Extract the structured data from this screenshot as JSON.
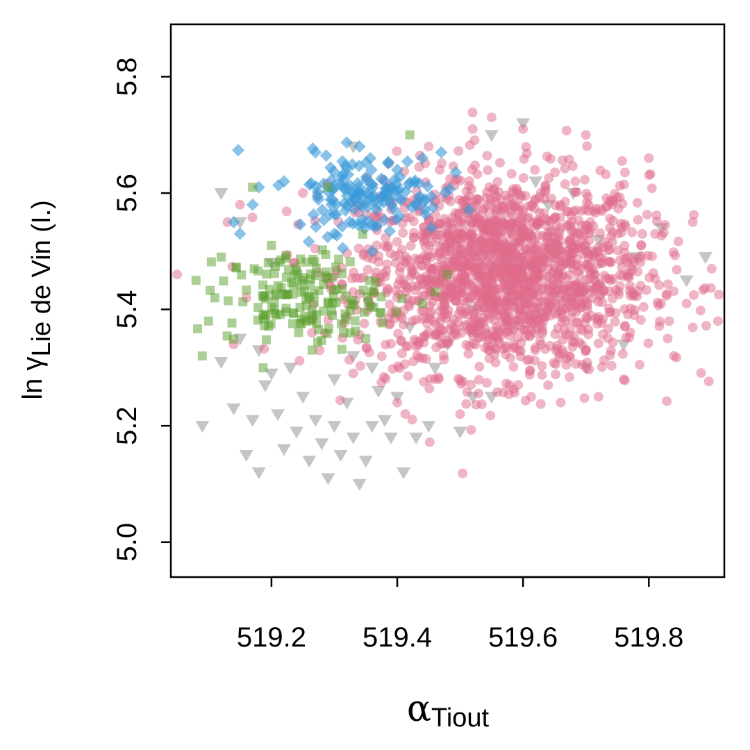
{
  "chart_data": {
    "type": "scatter",
    "title": "",
    "xlabel": "α",
    "xlabel_sub": "Tiout",
    "ylabel_prefix": "ln γ",
    "ylabel_sub": "Lie de Vin (I.)",
    "xlim": [
      519.04,
      519.92
    ],
    "ylim": [
      4.94,
      5.89
    ],
    "x_ticks": [
      519.2,
      519.4,
      519.6,
      519.8
    ],
    "x_tick_labels": [
      "519.2",
      "519.4",
      "519.6",
      "519.8"
    ],
    "y_ticks": [
      5.0,
      5.2,
      5.4,
      5.6,
      5.8
    ],
    "y_tick_labels": [
      "5.0",
      "5.2",
      "5.4",
      "5.6",
      "5.8"
    ],
    "grid": false,
    "series": [
      {
        "marker": "triangle-down",
        "color": "#8c8c8c",
        "opacity": 0.5,
        "points": [
          [
            519.09,
            5.2
          ],
          [
            519.12,
            5.31
          ],
          [
            519.14,
            5.23
          ],
          [
            519.16,
            5.15
          ],
          [
            519.18,
            5.12
          ],
          [
            519.17,
            5.21
          ],
          [
            519.19,
            5.27
          ],
          [
            519.21,
            5.22
          ],
          [
            519.22,
            5.16
          ],
          [
            519.24,
            5.19
          ],
          [
            519.25,
            5.25
          ],
          [
            519.23,
            5.3
          ],
          [
            519.26,
            5.14
          ],
          [
            519.27,
            5.21
          ],
          [
            519.28,
            5.17
          ],
          [
            519.29,
            5.11
          ],
          [
            519.3,
            5.2
          ],
          [
            519.31,
            5.15
          ],
          [
            519.32,
            5.24
          ],
          [
            519.33,
            5.18
          ],
          [
            519.34,
            5.1
          ],
          [
            519.35,
            5.14
          ],
          [
            519.36,
            5.2
          ],
          [
            519.37,
            5.26
          ],
          [
            519.38,
            5.21
          ],
          [
            519.39,
            5.18
          ],
          [
            519.41,
            5.12
          ],
          [
            519.43,
            5.18
          ],
          [
            519.45,
            5.2
          ],
          [
            519.5,
            5.19
          ],
          [
            519.52,
            5.25
          ],
          [
            519.55,
            5.25
          ],
          [
            519.15,
            5.35
          ],
          [
            519.18,
            5.33
          ],
          [
            519.2,
            5.29
          ],
          [
            519.3,
            5.28
          ],
          [
            519.33,
            5.32
          ],
          [
            519.36,
            5.3
          ],
          [
            519.4,
            5.25
          ],
          [
            519.12,
            5.6
          ],
          [
            519.15,
            5.55
          ],
          [
            519.2,
            5.48
          ],
          [
            519.33,
            5.68
          ],
          [
            519.45,
            5.45
          ],
          [
            519.48,
            5.34
          ],
          [
            519.55,
            5.7
          ],
          [
            519.6,
            5.72
          ],
          [
            519.62,
            5.62
          ],
          [
            519.68,
            5.6
          ],
          [
            519.72,
            5.52
          ],
          [
            519.78,
            5.49
          ],
          [
            519.82,
            5.54
          ],
          [
            519.86,
            5.45
          ],
          [
            519.89,
            5.49
          ],
          [
            519.76,
            5.34
          ],
          [
            519.7,
            5.3
          ],
          [
            519.64,
            5.58
          ],
          [
            519.58,
            5.47
          ],
          [
            519.52,
            5.4
          ],
          [
            519.42,
            5.37
          ],
          [
            519.46,
            5.3
          ]
        ]
      },
      {
        "marker": "circle",
        "color": "#e06b8c",
        "opacity": 0.5,
        "cloud": {
          "center": [
            519.57,
            5.46
          ],
          "spread": [
            0.115,
            0.085
          ],
          "count": 1800
        },
        "points": [
          [
            519.05,
            5.46
          ],
          [
            519.91,
            5.38
          ],
          [
            519.55,
            5.73
          ],
          [
            519.6,
            5.71
          ],
          [
            519.7,
            5.7
          ],
          [
            519.8,
            5.66
          ],
          [
            519.87,
            5.55
          ],
          [
            519.86,
            5.41
          ],
          [
            519.84,
            5.32
          ],
          [
            519.72,
            5.25
          ],
          [
            519.5,
            5.22
          ],
          [
            519.4,
            5.24
          ],
          [
            519.33,
            5.29
          ],
          [
            519.16,
            5.42
          ],
          [
            519.14,
            5.34
          ],
          [
            519.13,
            5.55
          ],
          [
            519.15,
            5.58
          ],
          [
            519.25,
            5.6
          ],
          [
            519.45,
            5.68
          ],
          [
            519.52,
            5.71
          ],
          [
            519.9,
            5.47
          ],
          [
            519.83,
            5.35
          ],
          [
            519.76,
            5.28
          ],
          [
            519.66,
            5.24
          ]
        ]
      },
      {
        "marker": "diamond",
        "color": "#3a9ad9",
        "opacity": 0.6,
        "cloud": {
          "center": [
            519.35,
            5.6
          ],
          "spread": [
            0.06,
            0.035
          ],
          "count": 150
        },
        "points": [
          [
            519.14,
            5.55
          ],
          [
            519.15,
            5.53
          ],
          [
            519.17,
            5.58
          ],
          [
            519.18,
            5.61
          ],
          [
            519.27,
            5.67
          ],
          [
            519.34,
            5.68
          ],
          [
            519.4,
            5.64
          ],
          [
            519.44,
            5.66
          ],
          [
            519.47,
            5.67
          ],
          [
            519.36,
            5.5
          ],
          [
            519.3,
            5.53
          ],
          [
            519.22,
            5.62
          ]
        ]
      },
      {
        "marker": "square",
        "color": "#5aa02c",
        "opacity": 0.5,
        "cloud": {
          "center": [
            519.25,
            5.42
          ],
          "spread": [
            0.06,
            0.04
          ],
          "count": 160
        },
        "points": [
          [
            519.08,
            5.45
          ],
          [
            519.09,
            5.32
          ],
          [
            519.1,
            5.38
          ],
          [
            519.11,
            5.42
          ],
          [
            519.12,
            5.49
          ],
          [
            519.17,
            5.61
          ],
          [
            519.2,
            5.51
          ],
          [
            519.29,
            5.61
          ],
          [
            519.42,
            5.7
          ],
          [
            519.44,
            5.41
          ],
          [
            519.46,
            5.43
          ],
          [
            519.48,
            5.46
          ],
          [
            519.35,
            5.35
          ]
        ]
      }
    ]
  }
}
